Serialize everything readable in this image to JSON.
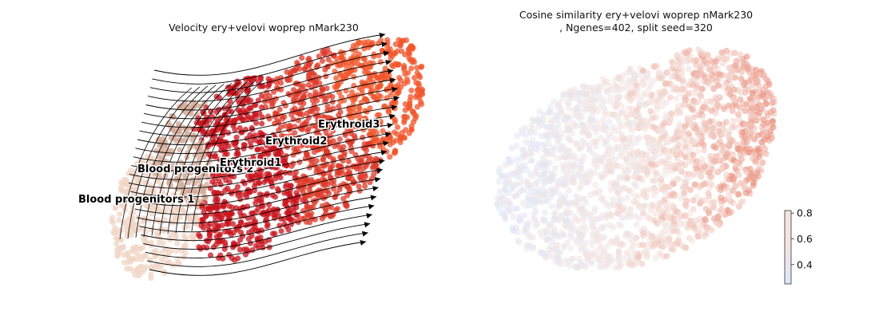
{
  "chart_data": [
    {
      "type": "scatter",
      "subtype": "velocity-stream-embedding",
      "title": "Velocity ery+velovi woprep nMark230",
      "xlabel": "",
      "ylabel": "",
      "grid": false,
      "clusters": [
        {
          "name": "Blood progenitors 1",
          "color": "#f0d6c6"
        },
        {
          "name": "Blood progenitors 2",
          "color": "#d3a896"
        },
        {
          "name": "Erythroid1",
          "color": "#c8141e"
        },
        {
          "name": "Erythroid2",
          "color": "#dc3a2a"
        },
        {
          "name": "Erythroid3",
          "color": "#f0542a"
        }
      ],
      "streamline_color": "#000000"
    },
    {
      "type": "scatter",
      "subtype": "embedding-colored-by-value",
      "title": "Cosine similarity ery+velovi woprep nMark230",
      "subtitle": ", Ngenes=402, split seed=320",
      "xlabel": "",
      "ylabel": "",
      "grid": false,
      "colorbar": {
        "min": 0.25,
        "max": 0.82,
        "ticks": [
          "0.8",
          "0.6",
          "0.4"
        ],
        "tick_values": [
          0.8,
          0.6,
          0.4
        ],
        "colors": [
          "#dde7fb",
          "#f4e4df",
          "#e8806a"
        ],
        "placement": "bottom-right"
      }
    }
  ]
}
